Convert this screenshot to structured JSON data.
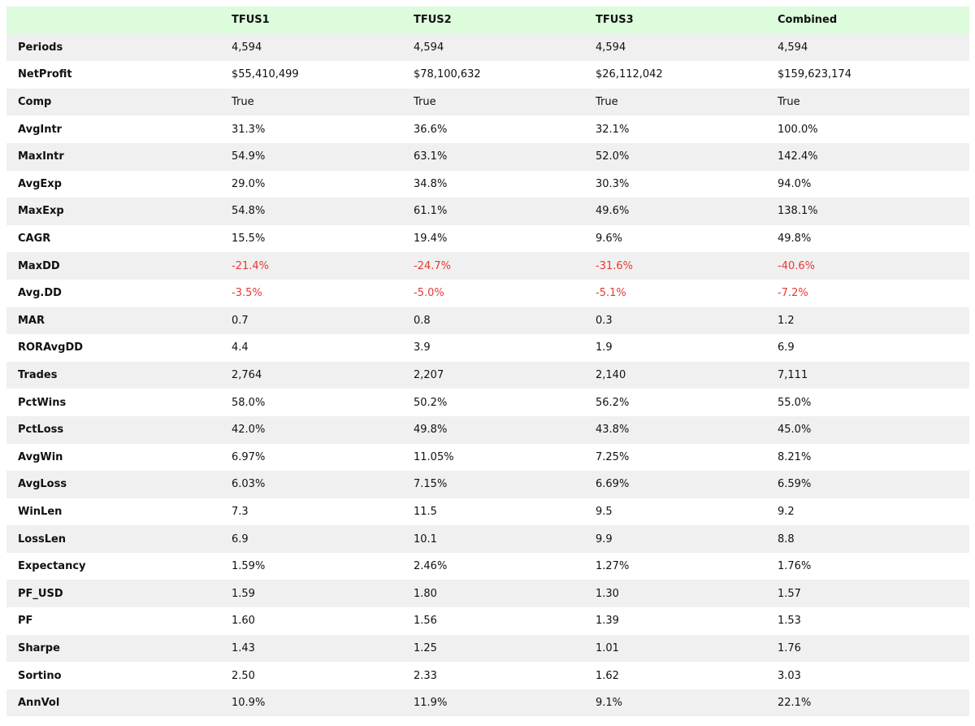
{
  "table": {
    "columns": [
      "",
      "TFUS1",
      "TFUS2",
      "TFUS3",
      "Combined"
    ],
    "rows": [
      {
        "label": "Periods",
        "values": [
          "4,594",
          "4,594",
          "4,594",
          "4,594"
        ]
      },
      {
        "label": "NetProfit",
        "values": [
          "$55,410,499",
          "$78,100,632",
          "$26,112,042",
          "$159,623,174"
        ]
      },
      {
        "label": "Comp",
        "values": [
          "True",
          "True",
          "True",
          "True"
        ]
      },
      {
        "label": "AvgIntr",
        "values": [
          "31.3%",
          "36.6%",
          "32.1%",
          "100.0%"
        ]
      },
      {
        "label": "MaxIntr",
        "values": [
          "54.9%",
          "63.1%",
          "52.0%",
          "142.4%"
        ]
      },
      {
        "label": "AvgExp",
        "values": [
          "29.0%",
          "34.8%",
          "30.3%",
          "94.0%"
        ]
      },
      {
        "label": "MaxExp",
        "values": [
          "54.8%",
          "61.1%",
          "49.6%",
          "138.1%"
        ]
      },
      {
        "label": "CAGR",
        "values": [
          "15.5%",
          "19.4%",
          "9.6%",
          "49.8%"
        ]
      },
      {
        "label": "MaxDD",
        "values": [
          "-21.4%",
          "-24.7%",
          "-31.6%",
          "-40.6%"
        ]
      },
      {
        "label": "Avg.DD",
        "values": [
          "-3.5%",
          "-5.0%",
          "-5.1%",
          "-7.2%"
        ]
      },
      {
        "label": "MAR",
        "values": [
          "0.7",
          "0.8",
          "0.3",
          "1.2"
        ]
      },
      {
        "label": "RORAvgDD",
        "values": [
          "4.4",
          "3.9",
          "1.9",
          "6.9"
        ]
      },
      {
        "label": "Trades",
        "values": [
          "2,764",
          "2,207",
          "2,140",
          "7,111"
        ]
      },
      {
        "label": "PctWins",
        "values": [
          "58.0%",
          "50.2%",
          "56.2%",
          "55.0%"
        ]
      },
      {
        "label": "PctLoss",
        "values": [
          "42.0%",
          "49.8%",
          "43.8%",
          "45.0%"
        ]
      },
      {
        "label": "AvgWin",
        "values": [
          "6.97%",
          "11.05%",
          "7.25%",
          "8.21%"
        ]
      },
      {
        "label": "AvgLoss",
        "values": [
          "6.03%",
          "7.15%",
          "6.69%",
          "6.59%"
        ]
      },
      {
        "label": "WinLen",
        "values": [
          "7.3",
          "11.5",
          "9.5",
          "9.2"
        ]
      },
      {
        "label": "LossLen",
        "values": [
          "6.9",
          "10.1",
          "9.9",
          "8.8"
        ]
      },
      {
        "label": "Expectancy",
        "values": [
          "1.59%",
          "2.46%",
          "1.27%",
          "1.76%"
        ]
      },
      {
        "label": "PF_USD",
        "values": [
          "1.59",
          "1.80",
          "1.30",
          "1.57"
        ]
      },
      {
        "label": "PF",
        "values": [
          "1.60",
          "1.56",
          "1.39",
          "1.53"
        ]
      },
      {
        "label": "Sharpe",
        "values": [
          "1.43",
          "1.25",
          "1.01",
          "1.76"
        ]
      },
      {
        "label": "Sortino",
        "values": [
          "2.50",
          "2.33",
          "1.62",
          "3.03"
        ]
      },
      {
        "label": "AnnVol",
        "values": [
          "10.9%",
          "11.9%",
          "9.1%",
          "22.1%"
        ]
      }
    ]
  },
  "colors": {
    "header_bg": "#dcfcdc",
    "row_alt_bg": "#f0f0f0",
    "negative_text": "#e53935"
  }
}
